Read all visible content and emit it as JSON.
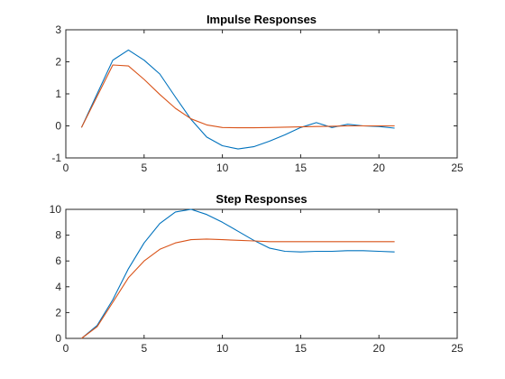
{
  "chart_data": [
    {
      "type": "line",
      "title": "Impulse Responses",
      "xlabel": "",
      "ylabel": "",
      "xlim": [
        0,
        25
      ],
      "ylim": [
        -1,
        3
      ],
      "xticks": [
        0,
        5,
        10,
        15,
        20,
        25
      ],
      "yticks": [
        -1,
        0,
        1,
        2,
        3
      ],
      "grid": false,
      "series": [
        {
          "color": "#0072BD",
          "x": [
            1,
            2,
            3,
            4,
            5,
            6,
            7,
            8,
            9,
            10,
            11,
            12,
            13,
            14,
            15,
            16,
            17,
            18,
            19,
            20,
            21
          ],
          "y": [
            -0.05,
            1.0,
            2.05,
            2.37,
            2.05,
            1.62,
            0.9,
            0.2,
            -0.35,
            -0.62,
            -0.72,
            -0.65,
            -0.48,
            -0.28,
            -0.05,
            0.1,
            -0.05,
            0.05,
            0.0,
            -0.02,
            -0.07
          ]
        },
        {
          "color": "#D95319",
          "x": [
            1,
            2,
            3,
            4,
            5,
            6,
            7,
            8,
            9,
            10,
            11,
            12,
            13,
            14,
            15,
            16,
            17,
            18,
            19,
            20,
            21
          ],
          "y": [
            -0.05,
            0.92,
            1.9,
            1.87,
            1.45,
            0.98,
            0.55,
            0.22,
            0.03,
            -0.05,
            -0.06,
            -0.06,
            -0.05,
            -0.04,
            -0.03,
            -0.02,
            -0.01,
            0.0,
            0.0,
            0.0,
            0.0
          ]
        }
      ]
    },
    {
      "type": "line",
      "title": "Step Responses",
      "xlabel": "",
      "ylabel": "",
      "xlim": [
        0,
        25
      ],
      "ylim": [
        0,
        10
      ],
      "xticks": [
        0,
        5,
        10,
        15,
        20,
        25
      ],
      "yticks": [
        0,
        2,
        4,
        6,
        8,
        10
      ],
      "grid": false,
      "series": [
        {
          "color": "#0072BD",
          "x": [
            1,
            2,
            3,
            4,
            5,
            6,
            7,
            8,
            9,
            10,
            11,
            12,
            13,
            14,
            15,
            16,
            17,
            18,
            19,
            20,
            21
          ],
          "y": [
            0.0,
            1.0,
            3.0,
            5.4,
            7.4,
            8.9,
            9.8,
            10.0,
            9.6,
            9.0,
            8.3,
            7.6,
            7.0,
            6.75,
            6.7,
            6.75,
            6.75,
            6.8,
            6.8,
            6.75,
            6.7
          ]
        },
        {
          "color": "#D95319",
          "x": [
            1,
            2,
            3,
            4,
            5,
            6,
            7,
            8,
            9,
            10,
            11,
            12,
            13,
            14,
            15,
            16,
            17,
            18,
            19,
            20,
            21
          ],
          "y": [
            0.0,
            0.9,
            2.8,
            4.7,
            6.0,
            6.9,
            7.4,
            7.65,
            7.7,
            7.65,
            7.6,
            7.55,
            7.5,
            7.5,
            7.5,
            7.5,
            7.5,
            7.5,
            7.5,
            7.5,
            7.5
          ]
        }
      ]
    }
  ]
}
